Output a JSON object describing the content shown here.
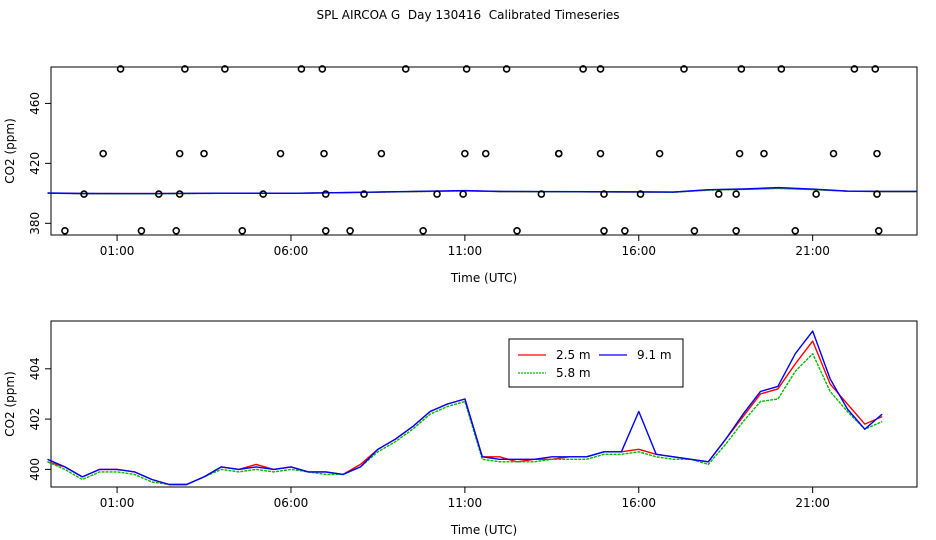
{
  "title": "SPL AIRCOA G  Day 130416  Calibrated Timeseries",
  "chart_data": [
    {
      "type": "scatter+line",
      "xlabel": "Time (UTC)",
      "ylabel": "CO2 (ppm)",
      "xlim": [
        -0.9,
        24.0
      ],
      "ylim": [
        372.2,
        484.3
      ],
      "xticks": [
        1,
        6,
        11,
        16,
        21
      ],
      "xtick_labels": [
        "01:00",
        "06:00",
        "11:00",
        "16:00",
        "21:00"
      ],
      "yticks": [
        380,
        420,
        460
      ],
      "ytick_labels": [
        "380",
        "420",
        "460"
      ],
      "grid": false,
      "markers": [
        [
          -0.5,
          375
        ],
        [
          0.05,
          399.5
        ],
        [
          0.6,
          426.5
        ],
        [
          1.1,
          483
        ],
        [
          1.7,
          375
        ],
        [
          2.2,
          399.5
        ],
        [
          2.7,
          375
        ],
        [
          2.8,
          426.5
        ],
        [
          2.8,
          399.5
        ],
        [
          2.95,
          483
        ],
        [
          3.5,
          426.5
        ],
        [
          4.1,
          483
        ],
        [
          4.6,
          375
        ],
        [
          5.2,
          399.5
        ],
        [
          5.7,
          426.5
        ],
        [
          6.3,
          483
        ],
        [
          6.9,
          483
        ],
        [
          6.95,
          426.5
        ],
        [
          7.0,
          399.5
        ],
        [
          7.0,
          375
        ],
        [
          7.7,
          375
        ],
        [
          8.1,
          399.5
        ],
        [
          8.6,
          426.5
        ],
        [
          9.3,
          483
        ],
        [
          9.8,
          375
        ],
        [
          10.2,
          399.5
        ],
        [
          11.05,
          483
        ],
        [
          11.0,
          426.5
        ],
        [
          10.95,
          399.5
        ],
        [
          11.6,
          426.5
        ],
        [
          12.2,
          483
        ],
        [
          12.5,
          375
        ],
        [
          13.2,
          399.5
        ],
        [
          13.7,
          426.5
        ],
        [
          13.7,
          426.5
        ],
        [
          14.4,
          483
        ],
        [
          14.9,
          483
        ],
        [
          14.9,
          426.5
        ],
        [
          15.0,
          399.5
        ],
        [
          15.0,
          375
        ],
        [
          15.6,
          375
        ],
        [
          16.05,
          399.5
        ],
        [
          16.6,
          426.5
        ],
        [
          17.3,
          483
        ],
        [
          17.6,
          375
        ],
        [
          18.3,
          399.5
        ],
        [
          18.8,
          399.5
        ],
        [
          18.8,
          375
        ],
        [
          18.9,
          426.5
        ],
        [
          18.95,
          483
        ],
        [
          19.6,
          426.5
        ],
        [
          20.1,
          483
        ],
        [
          20.5,
          375
        ],
        [
          21.1,
          399.5
        ],
        [
          21.6,
          426.5
        ],
        [
          22.2,
          483
        ],
        [
          22.8,
          483
        ],
        [
          22.85,
          426.5
        ],
        [
          22.85,
          399.5
        ],
        [
          22.9,
          375
        ]
      ],
      "series": [
        {
          "name": "2.5 m",
          "color": "#ff0000",
          "x": [
            -1.0,
            0.0,
            2.0,
            4.0,
            6.0,
            8.0,
            11.0,
            12.0,
            16.0,
            17.0,
            18.0,
            19.0,
            20.0,
            21.0,
            22.0,
            23.0,
            24.0
          ],
          "values": [
            400.1,
            399.8,
            399.8,
            400.0,
            400.0,
            400.6,
            401.7,
            401.2,
            400.8,
            400.8,
            402.3,
            402.7,
            403.4,
            402.6,
            401.4,
            401.2,
            401.2
          ]
        },
        {
          "name": "5.8 m",
          "color": "#00bb00",
          "x": [
            -1.0,
            0.0,
            2.0,
            4.0,
            6.0,
            8.0,
            11.0,
            12.0,
            16.0,
            17.0,
            18.0,
            19.0,
            20.0,
            21.0,
            22.0,
            23.0,
            24.0
          ],
          "values": [
            400.1,
            399.8,
            399.7,
            400.0,
            400.0,
            400.6,
            401.6,
            401.2,
            400.8,
            400.7,
            402.1,
            402.6,
            403.2,
            402.5,
            401.4,
            401.2,
            401.2
          ]
        },
        {
          "name": "9.1 m",
          "color": "#0000ff",
          "x": [
            -1.0,
            0.0,
            2.0,
            4.0,
            6.0,
            8.0,
            11.0,
            12.0,
            16.0,
            17.0,
            18.0,
            19.0,
            20.0,
            21.0,
            22.0,
            23.0,
            24.0
          ],
          "values": [
            400.2,
            399.9,
            399.8,
            400.1,
            400.0,
            400.7,
            401.8,
            401.3,
            401.0,
            400.8,
            402.4,
            402.9,
            403.8,
            402.8,
            401.5,
            401.3,
            401.3
          ]
        }
      ]
    },
    {
      "type": "line",
      "xlabel": "Time (UTC)",
      "ylabel": "CO2 (ppm)",
      "xlim": [
        -0.9,
        24.0
      ],
      "ylim": [
        399.3,
        405.9
      ],
      "xticks": [
        1,
        6,
        11,
        16,
        21
      ],
      "xtick_labels": [
        "01:00",
        "06:00",
        "11:00",
        "16:00",
        "21:00"
      ],
      "yticks": [
        400,
        402,
        404
      ],
      "ytick_labels": [
        "400",
        "402",
        "404"
      ],
      "grid": false,
      "legend": {
        "position": "top-center",
        "entries": [
          {
            "label": "2.5 m",
            "color": "#ff0000"
          },
          {
            "label": "9.1 m",
            "color": "#0000ff"
          },
          {
            "label": "5.8 m",
            "color": "#00bb00"
          }
        ]
      },
      "series": [
        {
          "name": "2.5 m",
          "color": "#ff0000",
          "x": [
            -1.0,
            -0.5,
            0.0,
            0.5,
            1.0,
            1.5,
            2.0,
            2.5,
            3.0,
            3.5,
            4.0,
            4.5,
            5.0,
            5.5,
            6.0,
            6.5,
            7.0,
            7.5,
            8.0,
            8.5,
            9.0,
            9.5,
            10.0,
            10.5,
            11.0,
            11.5,
            12.0,
            12.5,
            13.0,
            13.5,
            14.0,
            14.5,
            15.0,
            15.5,
            16.0,
            16.5,
            17.0,
            17.5,
            18.0,
            18.5,
            19.0,
            19.5,
            20.0,
            20.5,
            21.0,
            21.5,
            22.0,
            22.5,
            23.0
          ],
          "values": [
            400.3,
            400.1,
            399.7,
            400.0,
            400.0,
            399.9,
            399.6,
            399.4,
            399.4,
            399.7,
            400.1,
            400.0,
            400.2,
            400.0,
            400.1,
            399.9,
            399.9,
            399.8,
            400.2,
            400.8,
            401.2,
            401.7,
            402.3,
            402.6,
            402.8,
            400.5,
            400.5,
            400.3,
            400.4,
            400.4,
            400.5,
            400.5,
            400.7,
            400.7,
            400.8,
            400.6,
            400.5,
            400.4,
            400.3,
            401.2,
            402.1,
            403.0,
            403.2,
            404.2,
            405.1,
            403.4,
            402.6,
            401.8,
            402.1
          ]
        },
        {
          "name": "5.8 m",
          "color": "#00bb00",
          "x": [
            -1.0,
            -0.5,
            0.0,
            0.5,
            1.0,
            1.5,
            2.0,
            2.5,
            3.0,
            3.5,
            4.0,
            4.5,
            5.0,
            5.5,
            6.0,
            6.5,
            7.0,
            7.5,
            8.0,
            8.5,
            9.0,
            9.5,
            10.0,
            10.5,
            11.0,
            11.5,
            12.0,
            12.5,
            13.0,
            13.5,
            14.0,
            14.5,
            15.0,
            15.5,
            16.0,
            16.5,
            17.0,
            17.5,
            18.0,
            18.5,
            19.0,
            19.5,
            20.0,
            20.5,
            21.0,
            21.5,
            22.0,
            22.5,
            23.0
          ],
          "values": [
            400.3,
            400.0,
            399.6,
            399.9,
            399.9,
            399.8,
            399.5,
            399.4,
            399.4,
            399.7,
            400.0,
            399.9,
            400.0,
            399.9,
            400.0,
            399.9,
            399.8,
            399.8,
            400.1,
            400.7,
            401.1,
            401.6,
            402.2,
            402.5,
            402.7,
            400.4,
            400.3,
            400.3,
            400.3,
            400.4,
            400.4,
            400.4,
            400.6,
            400.6,
            400.7,
            400.5,
            400.4,
            400.4,
            400.2,
            401.0,
            401.9,
            402.7,
            402.8,
            403.9,
            404.6,
            403.1,
            402.3,
            401.6,
            401.9
          ]
        },
        {
          "name": "9.1 m",
          "color": "#0000ff",
          "x": [
            -1.0,
            -0.5,
            0.0,
            0.5,
            1.0,
            1.5,
            2.0,
            2.5,
            3.0,
            3.5,
            4.0,
            4.5,
            5.0,
            5.5,
            6.0,
            6.5,
            7.0,
            7.5,
            8.0,
            8.5,
            9.0,
            9.5,
            10.0,
            10.5,
            11.0,
            11.5,
            12.0,
            12.5,
            13.0,
            13.5,
            14.0,
            14.5,
            15.0,
            15.5,
            16.0,
            16.5,
            17.0,
            17.5,
            18.0,
            18.5,
            19.0,
            19.5,
            20.0,
            20.5,
            21.0,
            21.5,
            22.0,
            22.5,
            23.0
          ],
          "values": [
            400.4,
            400.1,
            399.7,
            400.0,
            400.0,
            399.9,
            399.6,
            399.4,
            399.4,
            399.7,
            400.1,
            400.0,
            400.1,
            400.0,
            400.1,
            399.9,
            399.9,
            399.8,
            400.1,
            400.8,
            401.2,
            401.7,
            402.3,
            402.6,
            402.8,
            400.5,
            400.4,
            400.4,
            400.4,
            400.5,
            400.5,
            400.5,
            400.7,
            400.7,
            402.3,
            400.6,
            400.5,
            400.4,
            400.3,
            401.2,
            402.2,
            403.1,
            403.3,
            404.6,
            405.5,
            403.6,
            402.4,
            401.6,
            402.2
          ]
        }
      ]
    }
  ]
}
